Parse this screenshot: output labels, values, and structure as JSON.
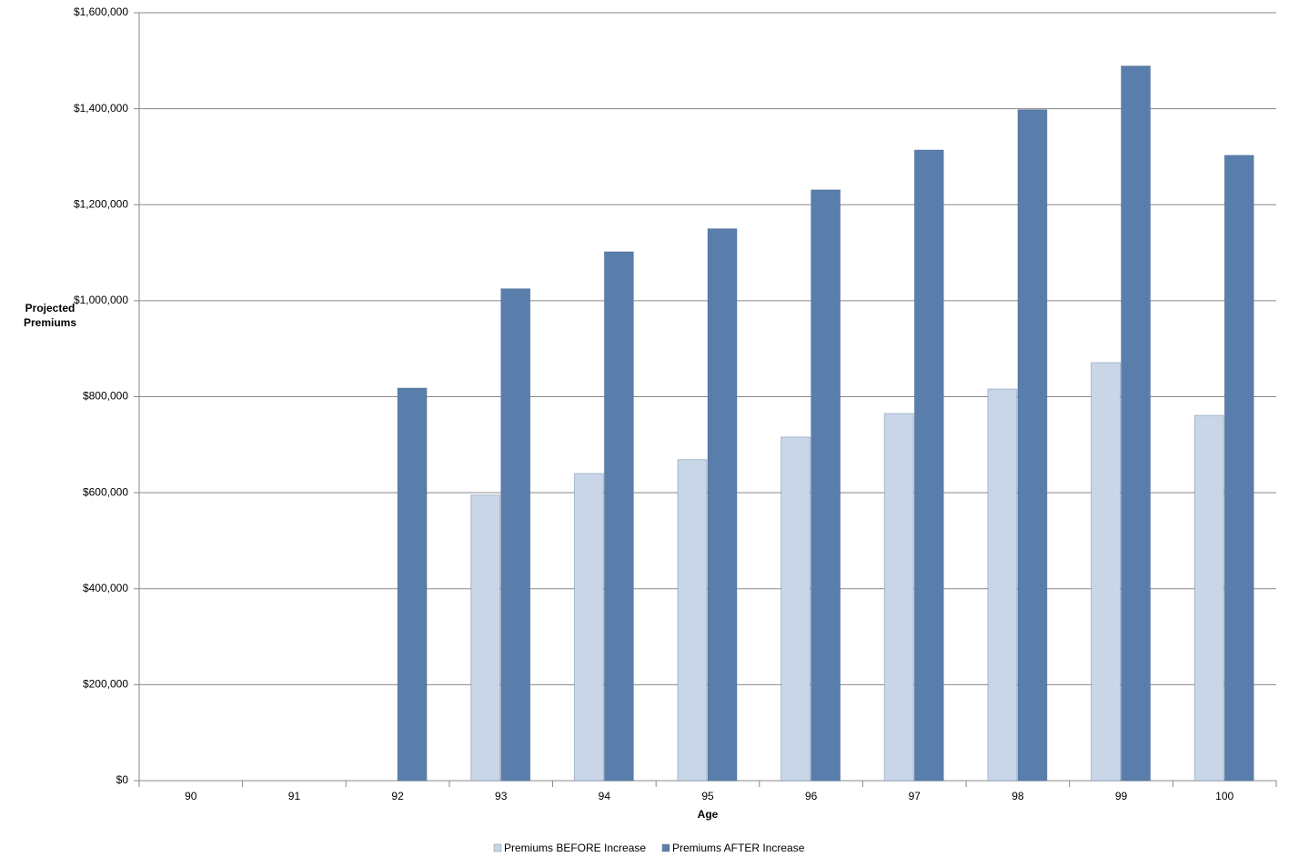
{
  "chart_data": {
    "type": "bar",
    "x_label": "Age",
    "y_label": "Projected Premiums",
    "categories": [
      "90",
      "91",
      "92",
      "93",
      "94",
      "95",
      "96",
      "97",
      "98",
      "99",
      "100"
    ],
    "series": [
      {
        "name": "Premiums BEFORE Increase",
        "color": "#c9d6e8",
        "values": [
          null,
          null,
          null,
          595000,
          640000,
          669000,
          716000,
          765000,
          816000,
          871000,
          761000
        ]
      },
      {
        "name": "Premiums AFTER Increase",
        "color": "#5a7eab",
        "values": [
          null,
          null,
          818000,
          1025000,
          1102000,
          1150000,
          1231000,
          1314000,
          1398000,
          1489000,
          1303000
        ]
      }
    ],
    "ylim": [
      0,
      1600000
    ],
    "yticks": [
      {
        "value": 0,
        "label": "$0"
      },
      {
        "value": 200000,
        "label": "$200,000"
      },
      {
        "value": 400000,
        "label": "$400,000"
      },
      {
        "value": 600000,
        "label": "$600,000"
      },
      {
        "value": 800000,
        "label": "$800,000"
      },
      {
        "value": 1000000,
        "label": "$1,000,000"
      },
      {
        "value": 1200000,
        "label": "$1,200,000"
      },
      {
        "value": 1400000,
        "label": "$1,400,000"
      },
      {
        "value": 1600000,
        "label": "$1,600,000"
      }
    ],
    "grid": true
  }
}
